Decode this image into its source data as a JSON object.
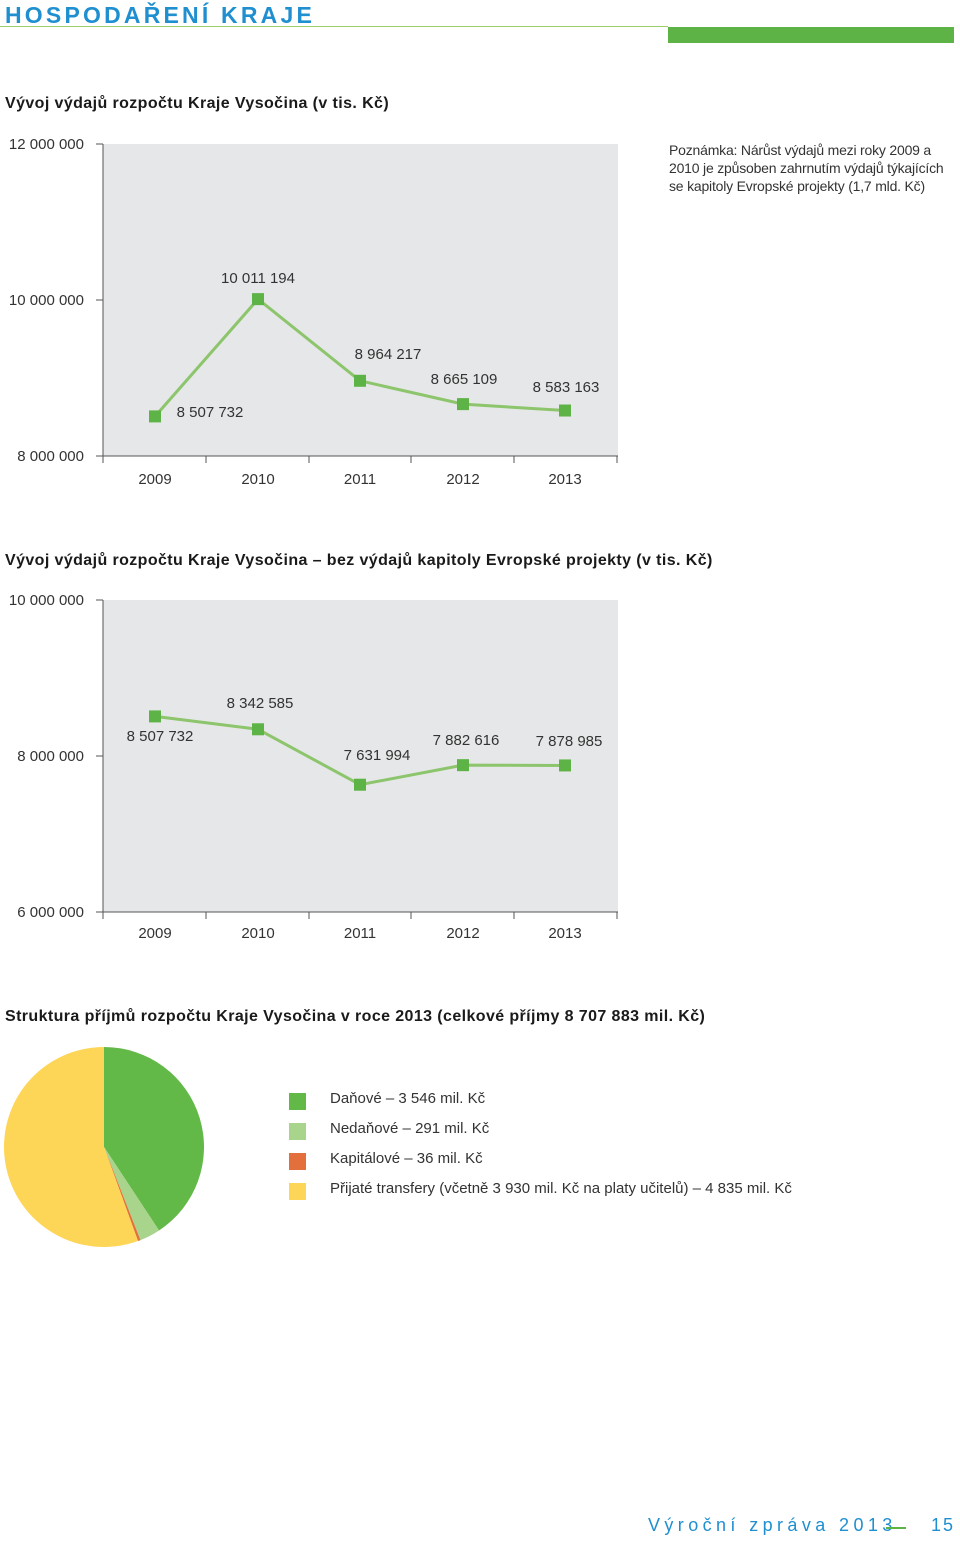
{
  "header": {
    "title": "HOSPODAŘENÍ KRAJE",
    "accent_color": "#5db346",
    "title_color": "#1f8fd0"
  },
  "chart1": {
    "title": "Vývoj výdajů rozpočtu Kraje Vysočina (v tis. Kč)",
    "note": "Poznámka: Nárůst výdajů mezi roky 2009 a 2010 je způsoben zahrnutím výdajů týkajících se kapitoly Evropské projekty (1,7 mld. Kč)"
  },
  "chart2": {
    "title": "Vývoj výdajů rozpočtu Kraje Vysočina – bez výdajů kapitoly Evropské projekty (v tis. Kč)"
  },
  "chart3": {
    "title": "Struktura příjmů rozpočtu Kraje Vysočina v roce 2013 (celkové příjmy 8 707 883 mil. Kč)"
  },
  "chart_data": [
    {
      "type": "line",
      "title": "Vývoj výdajů rozpočtu Kraje Vysočina (v tis. Kč)",
      "categories": [
        "2009",
        "2010",
        "2011",
        "2012",
        "2013"
      ],
      "values": [
        8507732,
        10011194,
        8964217,
        8665109,
        8583163
      ],
      "value_labels": [
        "8 507 732",
        "10 011 194",
        "8 964 217",
        "8 665 109",
        "8 583 163"
      ],
      "ylim": [
        8000000,
        12000000
      ],
      "yticks": [
        8000000,
        10000000,
        12000000
      ],
      "ytick_labels": [
        "8 000 000",
        "10 000 000",
        "12 000 000"
      ],
      "line_color": "#8cc56c",
      "marker_color": "#5db346",
      "plot_bg": "#e6e7e8"
    },
    {
      "type": "line",
      "title": "Vývoj výdajů rozpočtu Kraje Vysočina – bez výdajů kapitoly Evropské projekty (v tis. Kč)",
      "categories": [
        "2009",
        "2010",
        "2011",
        "2012",
        "2013"
      ],
      "values": [
        8507732,
        8342585,
        7631994,
        7882616,
        7878985
      ],
      "value_labels": [
        "8 507 732",
        "8 342 585",
        "7 631 994",
        "7 882 616",
        "7 878 985"
      ],
      "ylim": [
        6000000,
        10000000
      ],
      "yticks": [
        6000000,
        8000000,
        10000000
      ],
      "ytick_labels": [
        "6 000 000",
        "8 000 000",
        "10 000 000"
      ],
      "line_color": "#8cc56c",
      "marker_color": "#5db346",
      "plot_bg": "#e6e7e8"
    },
    {
      "type": "pie",
      "title": "Struktura příjmů rozpočtu Kraje Vysočina v roce 2013 (celkové příjmy 8 707 883 mil. Kč)",
      "slices": [
        {
          "label": "Daňové – 3 546 mil. Kč",
          "value": 3546,
          "color": "#63b947"
        },
        {
          "label": "Nedaňové – 291 mil. Kč",
          "value": 291,
          "color": "#a8d48c"
        },
        {
          "label": "Kapitálové – 36 mil. Kč",
          "value": 36,
          "color": "#e3703c"
        },
        {
          "label": "Přijaté transfery (včetně 3 930 mil. Kč na platy učitelů) – 4 835 mil. Kč",
          "value": 4835,
          "color": "#fdd557"
        }
      ]
    }
  ],
  "footer": {
    "label": "Výroční zpráva 2013",
    "page": "15",
    "color": "#1f8fd0"
  }
}
